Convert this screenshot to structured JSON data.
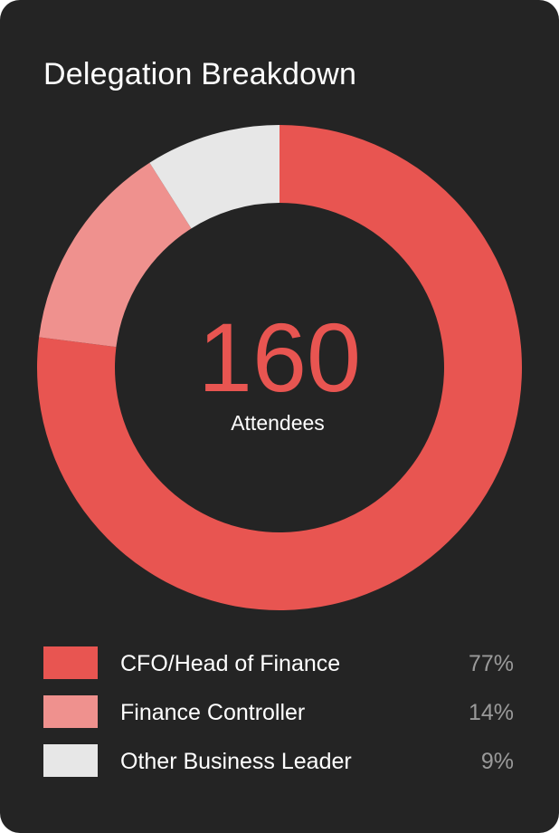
{
  "card": {
    "title": "Delegation Breakdown",
    "background": "#242424"
  },
  "chart_data": {
    "type": "pie",
    "title": "Delegation Breakdown",
    "total": {
      "value": "160",
      "label": "Attendees"
    },
    "slices": [
      {
        "label": "CFO/Head of Finance",
        "value": 77,
        "display": "77%",
        "color": "#e85551"
      },
      {
        "label": "Finance Controller",
        "value": 14,
        "display": "14%",
        "color": "#ef918e"
      },
      {
        "label": "Other Business Leader",
        "value": 9,
        "display": "9%",
        "color": "#e7e7e7"
      }
    ],
    "legend_position": "bottom",
    "center_value_color": "#e85551",
    "legend_value_color": "#9a9a9a"
  }
}
